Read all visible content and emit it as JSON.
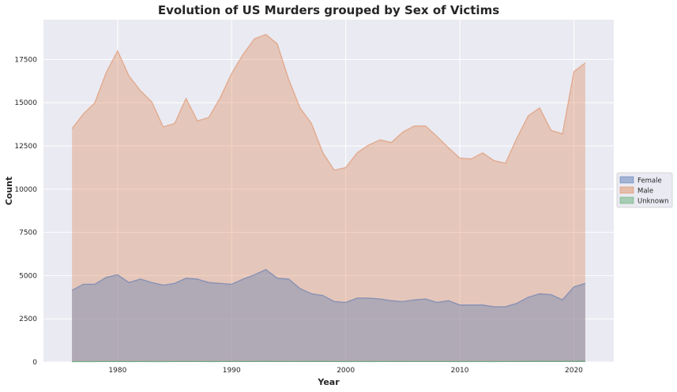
{
  "chart_data": {
    "type": "area",
    "title": "Evolution of US Murders grouped by Sex of Victims",
    "xlabel": "Year",
    "ylabel": "Count",
    "xlim": [
      1973.5,
      2023.5
    ],
    "ylim": [
      0,
      19800
    ],
    "x_ticks": [
      1980,
      1990,
      2000,
      2010,
      2020
    ],
    "x_tick_labels": [
      "1980",
      "1990",
      "2000",
      "2010",
      "2020"
    ],
    "y_ticks": [
      0,
      2500,
      5000,
      7500,
      10000,
      12500,
      15000,
      17500
    ],
    "y_tick_labels": [
      "0",
      "2500",
      "5000",
      "7500",
      "10000",
      "12500",
      "15000",
      "17500"
    ],
    "grid": true,
    "legend_position": "center-right",
    "x": [
      1976,
      1977,
      1978,
      1979,
      1980,
      1981,
      1982,
      1983,
      1984,
      1985,
      1986,
      1987,
      1988,
      1989,
      1990,
      1991,
      1992,
      1993,
      1994,
      1995,
      1996,
      1997,
      1998,
      1999,
      2000,
      2001,
      2002,
      2003,
      2004,
      2005,
      2006,
      2007,
      2008,
      2009,
      2010,
      2011,
      2012,
      2013,
      2014,
      2015,
      2016,
      2017,
      2018,
      2019,
      2020,
      2021
    ],
    "series": [
      {
        "name": "Female",
        "color": "#4c72b0",
        "values": [
          4150,
          4500,
          4500,
          4900,
          5050,
          4600,
          4800,
          4600,
          4450,
          4550,
          4850,
          4800,
          4600,
          4550,
          4500,
          4800,
          5050,
          5350,
          4850,
          4800,
          4250,
          3950,
          3850,
          3500,
          3450,
          3700,
          3700,
          3650,
          3550,
          3500,
          3600,
          3650,
          3450,
          3550,
          3300,
          3300,
          3300,
          3200,
          3200,
          3400,
          3750,
          3950,
          3900,
          3600,
          4350,
          4550
        ]
      },
      {
        "name": "Male",
        "color": "#dd8452",
        "values": [
          13500,
          14350,
          15000,
          16750,
          18000,
          16550,
          15700,
          15050,
          13600,
          13800,
          15250,
          13950,
          14150,
          15300,
          16700,
          17800,
          18700,
          18950,
          18400,
          16350,
          14700,
          13800,
          12100,
          11100,
          11250,
          12100,
          12550,
          12850,
          12700,
          13300,
          13650,
          13650,
          13050,
          12400,
          11800,
          11750,
          12100,
          11650,
          11500,
          12950,
          14250,
          14700,
          13400,
          13200,
          16800,
          17300
        ]
      },
      {
        "name": "Unknown",
        "color": "#55a868",
        "values": [
          20,
          30,
          25,
          30,
          35,
          25,
          30,
          25,
          25,
          30,
          35,
          30,
          25,
          30,
          35,
          30,
          35,
          40,
          35,
          30,
          30,
          35,
          40,
          30,
          25,
          30,
          25,
          30,
          30,
          35,
          30,
          30,
          30,
          30,
          25,
          25,
          30,
          25,
          30,
          35,
          40,
          50,
          40,
          40,
          45,
          50
        ]
      }
    ]
  }
}
